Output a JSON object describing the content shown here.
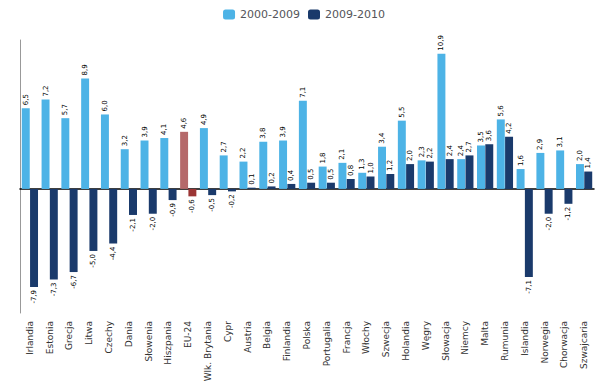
{
  "chart_data": {
    "type": "bar",
    "categories": [
      "Irlandia",
      "Estonia",
      "Grecja",
      "Litwa",
      "Czechy",
      "Dania",
      "Słowenia",
      "Hiszpania",
      "EU-24",
      "Wlk. Brytania",
      "Cypr",
      "Austria",
      "Belgia",
      "Finlandia",
      "Polska",
      "Portugalia",
      "Francja",
      "Włochy",
      "Szwecja",
      "Holandia",
      "Węgry",
      "Słowacja",
      "Niemcy",
      "Malta",
      "Rumunia",
      "Islandia",
      "Norwegia",
      "Chorwacja",
      "Szwajcaria"
    ],
    "series": [
      {
        "name": "2000-2009",
        "color": "#4db3e6",
        "colors": [
          "#4db3e6",
          "#4db3e6",
          "#4db3e6",
          "#4db3e6",
          "#4db3e6",
          "#4db3e6",
          "#4db3e6",
          "#4db3e6",
          "#b5696a",
          "#4db3e6",
          "#4db3e6",
          "#4db3e6",
          "#4db3e6",
          "#4db3e6",
          "#4db3e6",
          "#4db3e6",
          "#4db3e6",
          "#4db3e6",
          "#4db3e6",
          "#4db3e6",
          "#4db3e6",
          "#4db3e6",
          "#4db3e6",
          "#4db3e6",
          "#4db3e6",
          "#4db3e6",
          "#4db3e6",
          "#4db3e6",
          "#4db3e6"
        ],
        "values": [
          6.5,
          7.2,
          5.7,
          8.9,
          6.0,
          3.2,
          3.9,
          4.1,
          4.6,
          4.9,
          2.7,
          2.2,
          3.8,
          3.9,
          7.1,
          1.8,
          2.1,
          1.3,
          3.4,
          5.5,
          2.3,
          10.9,
          2.4,
          3.5,
          5.6,
          1.6,
          2.9,
          3.1,
          2.0
        ],
        "value_labels": [
          "6,5",
          "7,2",
          "5,7",
          "8,9",
          "6,0",
          "3,2",
          "3,9",
          "4,1",
          "4,6",
          "4,9",
          "2,7",
          "2,2",
          "3,8",
          "3,9",
          "7,1",
          "1,8",
          "2,1",
          "1,3",
          "3,4",
          "5,5",
          "2,3",
          "10,9",
          "2,4",
          "3,5",
          "5,6",
          "1,6",
          "2,9",
          "3,1",
          "2,0"
        ]
      },
      {
        "name": "2009-2010",
        "color": "#1a3a6b",
        "colors": [
          "#1a3a6b",
          "#1a3a6b",
          "#1a3a6b",
          "#1a3a6b",
          "#1a3a6b",
          "#1a3a6b",
          "#1a3a6b",
          "#1a3a6b",
          "#9b3535",
          "#1a3a6b",
          "#1a3a6b",
          "#1a3a6b",
          "#1a3a6b",
          "#1a3a6b",
          "#1a3a6b",
          "#1a3a6b",
          "#1a3a6b",
          "#1a3a6b",
          "#1a3a6b",
          "#1a3a6b",
          "#1a3a6b",
          "#1a3a6b",
          "#1a3a6b",
          "#1a3a6b",
          "#1a3a6b",
          "#1a3a6b",
          "#1a3a6b",
          "#1a3a6b",
          "#1a3a6b"
        ],
        "values": [
          -7.9,
          -7.3,
          -6.7,
          -5.0,
          -4.4,
          -2.1,
          -2.0,
          -0.9,
          -0.6,
          -0.5,
          -0.2,
          0.1,
          0.2,
          0.4,
          0.5,
          0.5,
          0.8,
          1.0,
          1.2,
          2.0,
          2.2,
          2.4,
          2.7,
          3.6,
          4.2,
          -7.1,
          -2.0,
          -1.2,
          1.4
        ],
        "value_labels": [
          "-7,9",
          "-7,3",
          "-6,7",
          "-5,0",
          "-4,4",
          "-2,1",
          "-2,0",
          "-0,9",
          "-0,6",
          "-0,5",
          "-0,2",
          "0,1",
          "0,2",
          "0,4",
          "0,5",
          "0,5",
          "0,8",
          "1,0",
          "1,2",
          "2,0",
          "2,2",
          "2,4",
          "2,7",
          "3,6",
          "4,2",
          "-7,1",
          "-2,0",
          "-1,2",
          "1,4"
        ]
      }
    ],
    "ylim": [
      -10,
      12
    ],
    "grid": false,
    "legend": "top",
    "data_labels": true,
    "tick_labels": "x"
  }
}
